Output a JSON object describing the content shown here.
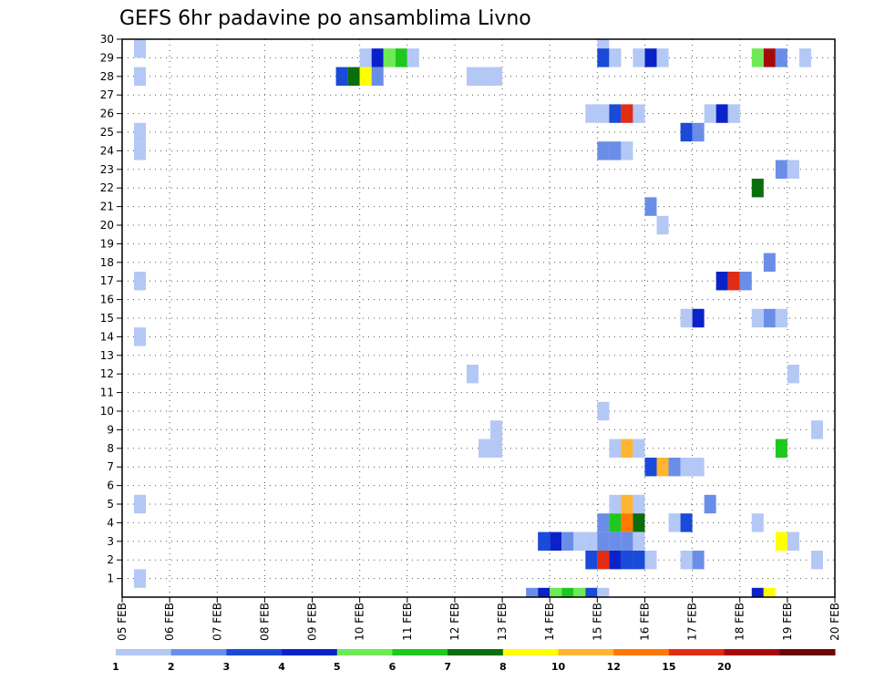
{
  "chart_data": {
    "type": "heatmap",
    "title": "GEFS 6hr padavine po ansamblima Livno",
    "x_tick_labels": [
      "05 FEB",
      "06 FEB",
      "07 FEB",
      "08 FEB",
      "09 FEB",
      "10 FEB",
      "11 FEB",
      "12 FEB",
      "13 FEB",
      "14 FEB",
      "15 FEB",
      "16 FEB",
      "17 FEB",
      "18 FEB",
      "19 FEB",
      "20 FEB"
    ],
    "y_tick_labels": [
      "1",
      "2",
      "3",
      "4",
      "5",
      "6",
      "7",
      "8",
      "9",
      "10",
      "11",
      "12",
      "13",
      "14",
      "15",
      "16",
      "17",
      "18",
      "19",
      "20",
      "21",
      "22",
      "23",
      "24",
      "25",
      "26",
      "27",
      "28",
      "29",
      "30"
    ],
    "x_range_days": [
      0,
      15
    ],
    "y_range": [
      0,
      30
    ],
    "grid": true,
    "colorbar": {
      "tick_labels": [
        "1",
        "2",
        "3",
        "4",
        "5",
        "6",
        "7",
        "8",
        "10",
        "12",
        "15",
        "20"
      ],
      "colors": [
        "#b4c8f5",
        "#6a8ee8",
        "#1a4ad8",
        "#0a23c8",
        "#6eea55",
        "#1ec81e",
        "#0a6e0a",
        "#ffff00",
        "#ffb432",
        "#ff7800",
        "#e12d14",
        "#a50a0a",
        "#6e0505"
      ]
    },
    "cells": [
      {
        "day": 0.25,
        "member": 30,
        "level": 1
      },
      {
        "day": 0.25,
        "member": 28,
        "level": 1
      },
      {
        "day": 0.25,
        "member": 25,
        "level": 1
      },
      {
        "day": 0.25,
        "member": 24,
        "level": 1
      },
      {
        "day": 0.25,
        "member": 17,
        "level": 1
      },
      {
        "day": 0.25,
        "member": 14,
        "level": 1
      },
      {
        "day": 0.25,
        "member": 5,
        "level": 1
      },
      {
        "day": 0.25,
        "member": 1,
        "level": 1
      },
      {
        "day": 4.5,
        "member": 28,
        "level": 3
      },
      {
        "day": 4.75,
        "member": 28,
        "level": 7
      },
      {
        "day": 5.0,
        "member": 28,
        "level": 8
      },
      {
        "day": 5.25,
        "member": 28,
        "level": 2
      },
      {
        "day": 5.0,
        "member": 29,
        "level": 1
      },
      {
        "day": 5.25,
        "member": 29,
        "level": 4
      },
      {
        "day": 5.5,
        "member": 29,
        "level": 5
      },
      {
        "day": 5.75,
        "member": 29,
        "level": 6
      },
      {
        "day": 6.0,
        "member": 29,
        "level": 1
      },
      {
        "day": 7.25,
        "member": 28,
        "level": 1
      },
      {
        "day": 7.5,
        "member": 28,
        "level": 1
      },
      {
        "day": 7.75,
        "member": 28,
        "level": 1
      },
      {
        "day": 7.25,
        "member": 12,
        "level": 1
      },
      {
        "day": 7.75,
        "member": 9,
        "level": 1
      },
      {
        "day": 7.5,
        "member": 8,
        "level": 1
      },
      {
        "day": 7.75,
        "member": 8,
        "level": 1
      },
      {
        "day": 10.0,
        "member": 30,
        "level": 1
      },
      {
        "day": 10.0,
        "member": 29,
        "level": 3
      },
      {
        "day": 10.25,
        "member": 29,
        "level": 1
      },
      {
        "day": 10.75,
        "member": 29,
        "level": 1
      },
      {
        "day": 11.0,
        "member": 29,
        "level": 4
      },
      {
        "day": 11.25,
        "member": 29,
        "level": 1
      },
      {
        "day": 9.75,
        "member": 26,
        "level": 1
      },
      {
        "day": 10.0,
        "member": 26,
        "level": 1
      },
      {
        "day": 10.25,
        "member": 26,
        "level": 3
      },
      {
        "day": 10.5,
        "member": 26,
        "level": 11
      },
      {
        "day": 10.75,
        "member": 26,
        "level": 1
      },
      {
        "day": 11.75,
        "member": 25,
        "level": 3
      },
      {
        "day": 12.0,
        "member": 25,
        "level": 2
      },
      {
        "day": 10.0,
        "member": 24,
        "level": 2
      },
      {
        "day": 10.25,
        "member": 24,
        "level": 2
      },
      {
        "day": 10.5,
        "member": 24,
        "level": 1
      },
      {
        "day": 11.0,
        "member": 21,
        "level": 2
      },
      {
        "day": 11.25,
        "member": 20,
        "level": 1
      },
      {
        "day": 11.75,
        "member": 15,
        "level": 1
      },
      {
        "day": 12.0,
        "member": 15,
        "level": 4
      },
      {
        "day": 12.25,
        "member": 26,
        "level": 1
      },
      {
        "day": 12.5,
        "member": 26,
        "level": 4
      },
      {
        "day": 12.75,
        "member": 26,
        "level": 1
      },
      {
        "day": 12.5,
        "member": 17,
        "level": 4
      },
      {
        "day": 12.75,
        "member": 17,
        "level": 11
      },
      {
        "day": 13.0,
        "member": 17,
        "level": 2
      },
      {
        "day": 13.25,
        "member": 29,
        "level": 5
      },
      {
        "day": 13.5,
        "member": 29,
        "level": 12
      },
      {
        "day": 13.75,
        "member": 29,
        "level": 2
      },
      {
        "day": 14.25,
        "member": 29,
        "level": 1
      },
      {
        "day": 13.75,
        "member": 23,
        "level": 2
      },
      {
        "day": 14.0,
        "member": 23,
        "level": 1
      },
      {
        "day": 13.25,
        "member": 22,
        "level": 7
      },
      {
        "day": 13.5,
        "member": 18,
        "level": 2
      },
      {
        "day": 13.25,
        "member": 15,
        "level": 1
      },
      {
        "day": 13.5,
        "member": 15,
        "level": 2
      },
      {
        "day": 13.75,
        "member": 15,
        "level": 1
      },
      {
        "day": 14.0,
        "member": 12,
        "level": 1
      },
      {
        "day": 14.5,
        "member": 9,
        "level": 1
      },
      {
        "day": 13.75,
        "member": 8,
        "level": 6
      },
      {
        "day": 10.0,
        "member": 10,
        "level": 1
      },
      {
        "day": 10.25,
        "member": 8,
        "level": 1
      },
      {
        "day": 10.5,
        "member": 8,
        "level": 9
      },
      {
        "day": 10.75,
        "member": 8,
        "level": 1
      },
      {
        "day": 11.0,
        "member": 7,
        "level": 3
      },
      {
        "day": 11.25,
        "member": 7,
        "level": 9
      },
      {
        "day": 11.5,
        "member": 7,
        "level": 2
      },
      {
        "day": 11.75,
        "member": 7,
        "level": 1
      },
      {
        "day": 12.0,
        "member": 7,
        "level": 1
      },
      {
        "day": 10.25,
        "member": 5,
        "level": 1
      },
      {
        "day": 10.5,
        "member": 5,
        "level": 9
      },
      {
        "day": 10.75,
        "member": 5,
        "level": 1
      },
      {
        "day": 12.25,
        "member": 5,
        "level": 2
      },
      {
        "day": 10.0,
        "member": 4,
        "level": 2
      },
      {
        "day": 10.25,
        "member": 4,
        "level": 6
      },
      {
        "day": 10.5,
        "member": 4,
        "level": 10
      },
      {
        "day": 10.75,
        "member": 4,
        "level": 7
      },
      {
        "day": 11.5,
        "member": 4,
        "level": 1
      },
      {
        "day": 11.75,
        "member": 4,
        "level": 3
      },
      {
        "day": 13.25,
        "member": 4,
        "level": 1
      },
      {
        "day": 8.75,
        "member": 3,
        "level": 3
      },
      {
        "day": 9.0,
        "member": 3,
        "level": 4
      },
      {
        "day": 9.25,
        "member": 3,
        "level": 2
      },
      {
        "day": 9.5,
        "member": 3,
        "level": 1
      },
      {
        "day": 9.75,
        "member": 3,
        "level": 1
      },
      {
        "day": 10.0,
        "member": 3,
        "level": 2
      },
      {
        "day": 10.25,
        "member": 3,
        "level": 2
      },
      {
        "day": 10.5,
        "member": 3,
        "level": 2
      },
      {
        "day": 10.75,
        "member": 3,
        "level": 1
      },
      {
        "day": 13.75,
        "member": 3,
        "level": 8
      },
      {
        "day": 14.0,
        "member": 3,
        "level": 1
      },
      {
        "day": 9.75,
        "member": 2,
        "level": 3
      },
      {
        "day": 10.0,
        "member": 2,
        "level": 11
      },
      {
        "day": 10.25,
        "member": 2,
        "level": 4
      },
      {
        "day": 10.5,
        "member": 2,
        "level": 3
      },
      {
        "day": 10.75,
        "member": 2,
        "level": 3
      },
      {
        "day": 11.0,
        "member": 2,
        "level": 1
      },
      {
        "day": 11.75,
        "member": 2,
        "level": 1
      },
      {
        "day": 12.0,
        "member": 2,
        "level": 2
      },
      {
        "day": 14.5,
        "member": 2,
        "level": 1
      },
      {
        "day": 8.5,
        "member": 0,
        "level": 2
      },
      {
        "day": 8.75,
        "member": 0,
        "level": 4
      },
      {
        "day": 9.0,
        "member": 0,
        "level": 5
      },
      {
        "day": 9.25,
        "member": 0,
        "level": 6
      },
      {
        "day": 9.5,
        "member": 0,
        "level": 5
      },
      {
        "day": 9.75,
        "member": 0,
        "level": 3
      },
      {
        "day": 10.0,
        "member": 0,
        "level": 1
      },
      {
        "day": 13.25,
        "member": 0,
        "level": 4
      },
      {
        "day": 13.5,
        "member": 0,
        "level": 8
      }
    ]
  }
}
